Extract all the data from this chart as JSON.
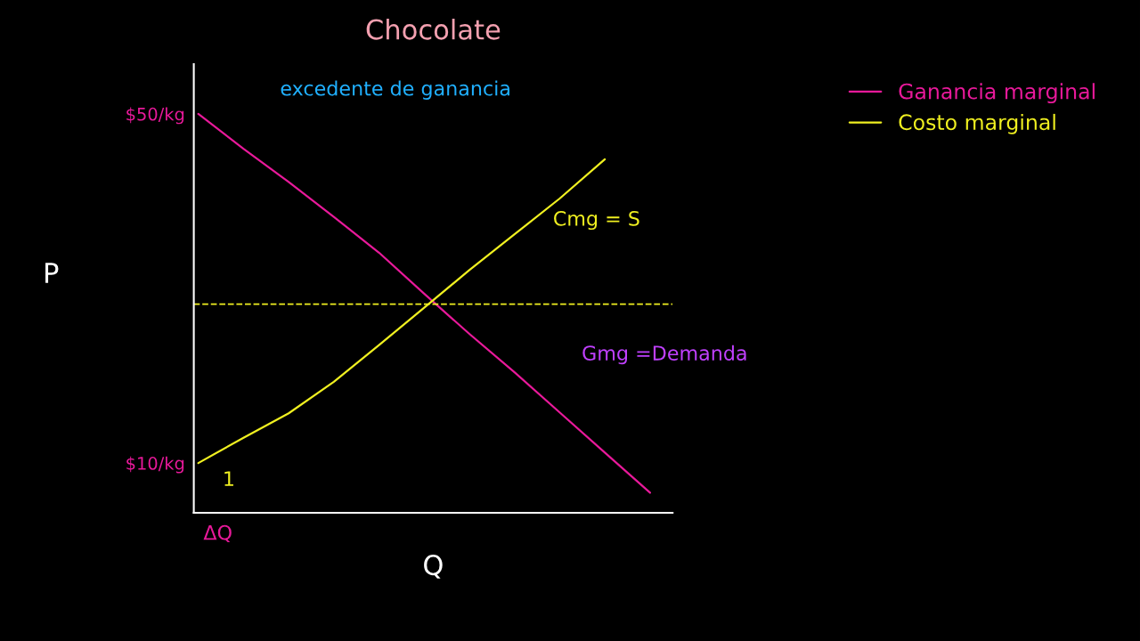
{
  "chart_data": {
    "type": "line",
    "title": "Chocolate",
    "xlabel": "Q",
    "ylabel": "P",
    "categories": [
      null,
      null,
      null,
      null,
      null,
      null,
      null,
      null,
      null,
      null,
      null
    ],
    "series": [
      {
        "name": "Ganancia marginal",
        "color": "#e8199a",
        "values": [
          50,
          46.0,
          42.2,
          38.2,
          34.1,
          29.4,
          24.8,
          20.4,
          15.8,
          11.2,
          6.6
        ]
      },
      {
        "name": "Costo marginal",
        "color": "#f0f020",
        "values": [
          10,
          12.9,
          15.7,
          19.3,
          23.5,
          27.8,
          32.1,
          36.2,
          40.3,
          44.8,
          null
        ]
      }
    ],
    "ylim": [
      4.3,
      55.7
    ],
    "yticks": [
      {
        "value": 10,
        "label": "$10/kg"
      },
      {
        "value": 50,
        "label": "$50/kg"
      }
    ],
    "ref_lines": [
      {
        "axis": "y",
        "value": 28.2,
        "color": "#f0f020",
        "line_style": "dashed"
      }
    ],
    "annotations": [
      "excedente de ganancia",
      "Cmg = S",
      "Gmg =Demanda",
      "ΔQ",
      "1"
    ],
    "legend": "top right",
    "grid": false,
    "marker": "none",
    "line_style": "solid"
  }
}
